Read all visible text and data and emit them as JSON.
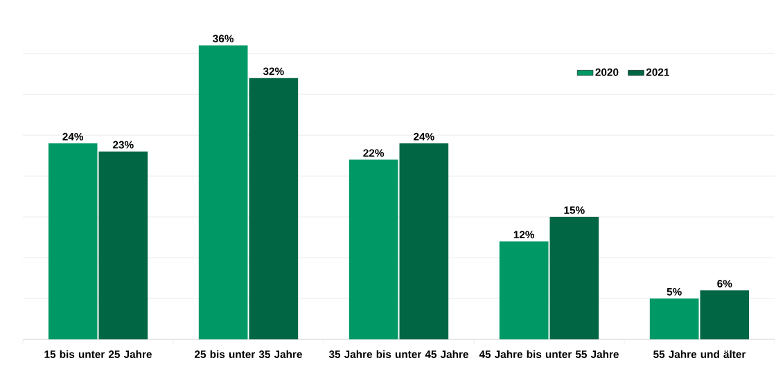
{
  "chart_data": {
    "type": "bar",
    "categories": [
      "15 bis unter 25 Jahre",
      "25 bis unter 35 Jahre",
      "35 Jahre bis unter 45 Jahre",
      "45 Jahre bis unter 55 Jahre",
      "55 Jahre und älter"
    ],
    "series": [
      {
        "name": "2020",
        "color": "#009966",
        "values": [
          24,
          36,
          22,
          12,
          5
        ],
        "value_labels": [
          "24%",
          "36%",
          "22%",
          "12%",
          "5%"
        ]
      },
      {
        "name": "2021",
        "color": "#006644",
        "values": [
          23,
          32,
          24,
          15,
          6
        ],
        "value_labels": [
          "23%",
          "32%",
          "24%",
          "15%",
          "6%"
        ]
      }
    ],
    "tick_labels": "x",
    "grid": "y",
    "legend": "top right"
  }
}
